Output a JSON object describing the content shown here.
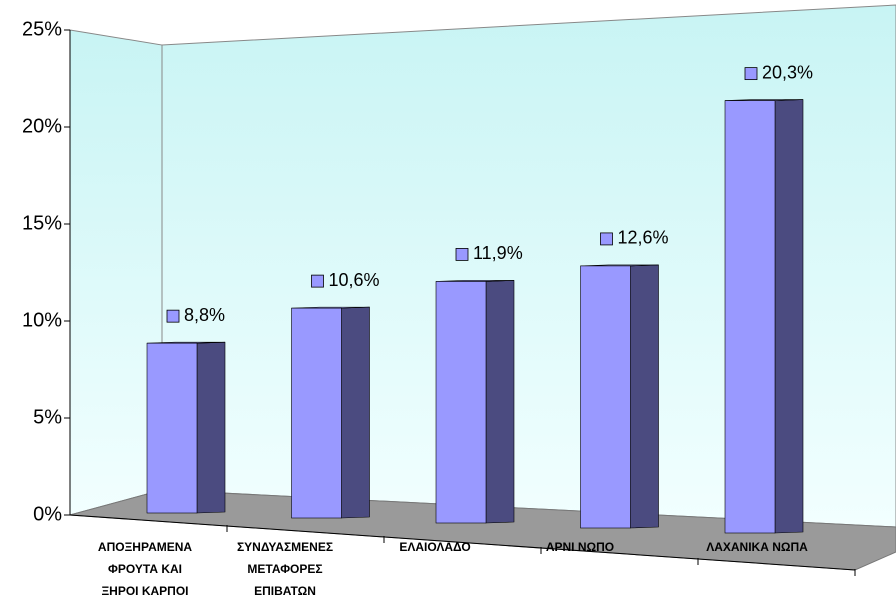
{
  "chart_data": {
    "type": "bar3d",
    "categories": [
      "ΑΠΟΞΗΡΑΜΕΝΑ\nΦΡΟΥΤΑ ΚΑΙ\nΞΗΡΟΙ ΚΑΡΠΟΙ",
      "ΣΥΝΔΥΑΣΜΕΝΕΣ\nΜΕΤΑΦΟΡΕΣ\nΕΠΙΒΑΤΩΝ",
      "ΕΛΑΙΟΛΑΔΟ",
      "ΑΡΝΙ ΝΩΠΟ",
      "ΛΑΧΑΝΙΚΑ ΝΩΠΑ"
    ],
    "values": [
      8.8,
      10.6,
      11.9,
      12.6,
      20.3
    ],
    "value_labels": [
      "8,8%",
      "10,6%",
      "11,9%",
      "12,6%",
      "20,3%"
    ],
    "color": "#9999ff",
    "ylim": [
      0,
      25
    ],
    "yticks": [
      {
        "value": 0,
        "label": "0%"
      },
      {
        "value": 5,
        "label": "5%"
      },
      {
        "value": 10,
        "label": "10%"
      },
      {
        "value": 15,
        "label": "15%"
      },
      {
        "value": 20,
        "label": "20%"
      },
      {
        "value": 25,
        "label": "25%"
      }
    ],
    "grid": false
  }
}
